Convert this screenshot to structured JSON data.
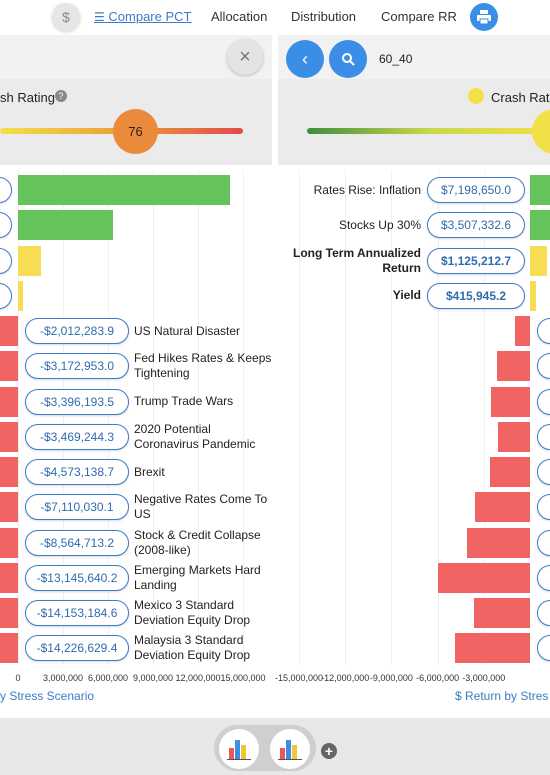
{
  "nav": {
    "dollar": "$",
    "items": [
      "Compare PCT",
      "Allocation",
      "Distribution",
      "Compare RR"
    ]
  },
  "left_panel": {
    "close": "×",
    "rating_label": "sh Rating",
    "slider_value": 76
  },
  "right_panel": {
    "portfolio": "60_40",
    "rating_label": "Crash Rati"
  },
  "left_chart": {
    "positive_values": [
      14100000,
      6300000,
      1500000,
      300000
    ],
    "scenarios": [
      {
        "label": "US Natural Disaster",
        "value": -2012283.9,
        "value_label": "-$2,012,283.9"
      },
      {
        "label": "Fed Hikes Rates & Keeps Tightening",
        "value": -3172953.0,
        "value_label": "-$3,172,953.0"
      },
      {
        "label": "Trump Trade Wars",
        "value": -3396193.5,
        "value_label": "-$3,396,193.5"
      },
      {
        "label": "2020 Potential Coronavirus Pandemic",
        "value": -3469244.3,
        "value_label": "-$3,469,244.3"
      },
      {
        "label": "Brexit",
        "value": -4573138.7,
        "value_label": "-$4,573,138.7"
      },
      {
        "label": "Negative Rates Come To US",
        "value": -7110030.1,
        "value_label": "-$7,110,030.1"
      },
      {
        "label": "Stock & Credit Collapse (2008-like)",
        "value": -8564713.2,
        "value_label": "-$8,564,713.2"
      },
      {
        "label": "Emerging Markets Hard Landing",
        "value": -13145640.2,
        "value_label": "-$13,145,640.2"
      },
      {
        "label": "Mexico 3 Standard Deviation Equity Drop",
        "value": -14153184.6,
        "value_label": "-$14,153,184.6"
      },
      {
        "label": "Malaysia 3 Standard Deviation Equity Drop",
        "value": -14226629.4,
        "value_label": "-$14,226,629.4"
      }
    ],
    "xticks": [
      0,
      {
        "value": 3000000,
        "label": "3,000,000"
      },
      {
        "value": 6000000,
        "label": "6,000,000"
      },
      {
        "value": 9000000,
        "label": "9,000,000"
      },
      {
        "value": 12000000,
        "label": "12,000,000"
      },
      {
        "value": 15000000,
        "label": "15,000,000"
      }
    ],
    "axis_title": "y Stress Scenario"
  },
  "right_chart": {
    "positive": [
      {
        "label": "Rates Rise: Inflation",
        "value": 7198650.0,
        "value_label": "$7,198,650.0",
        "bold": false
      },
      {
        "label": "Stocks Up 30%",
        "value": 3507332.6,
        "value_label": "$3,507,332.6",
        "bold": false
      },
      {
        "label": "Long Term Annualized Return",
        "value": 1125212.7,
        "value_label": "$1,125,212.7",
        "bold": true
      },
      {
        "label": "Yield",
        "value": 415945.2,
        "value_label": "$415,945.2",
        "bold": true
      }
    ],
    "negative_values": [
      -1000000,
      -2150000,
      -2550000,
      -2100000,
      -2600000,
      -3550000,
      -4100000,
      -5950000,
      -3650000,
      -4850000
    ],
    "xticks": [
      {
        "value": -15000000,
        "label": "-15,000,000"
      },
      {
        "value": -12000000,
        "label": "-12,000,000"
      },
      {
        "value": -9000000,
        "label": "-9,000,000"
      },
      {
        "value": -6000000,
        "label": "-6,000,000"
      },
      {
        "value": -3000000,
        "label": "-3,000,000"
      }
    ],
    "axis_title": "$ Return by Stres"
  }
}
